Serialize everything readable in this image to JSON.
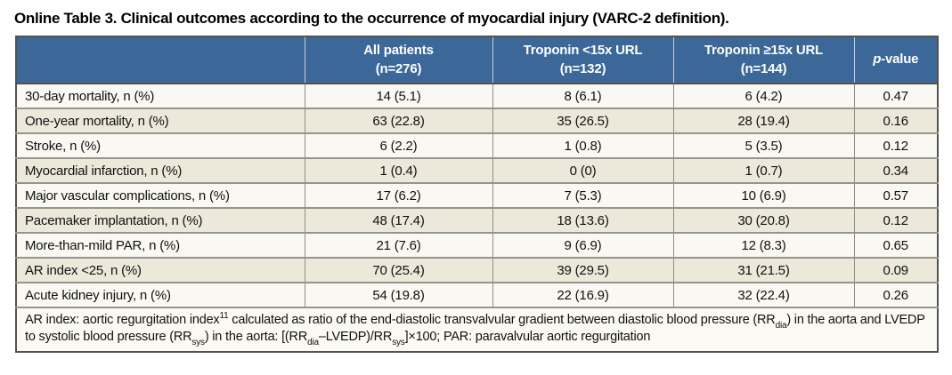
{
  "title": "Online Table 3. Clinical outcomes according to the occurrence of myocardial injury (VARC-2 definition).",
  "colors": {
    "header_bg": "#3c6799",
    "header_text": "#ffffff",
    "row_odd_bg": "#f9f8f2",
    "row_even_bg": "#ece8da",
    "border_outer": "#53524c",
    "border_inner": "#96958d"
  },
  "table": {
    "columns": {
      "label": "",
      "all_patients": "All patients\n(n=276)",
      "troponin_lt": "Troponin <15x URL\n(n=132)",
      "troponin_ge": "Troponin ≥15x URL\n(n=144)",
      "pvalue_italic": "p",
      "pvalue_rest": "-value"
    },
    "rows": [
      {
        "label": "30-day mortality, n (%)",
        "all": "14 (5.1)",
        "lt": "8 (6.1)",
        "ge": "6 (4.2)",
        "p": "0.47"
      },
      {
        "label": "One-year mortality, n (%)",
        "all": "63 (22.8)",
        "lt": "35 (26.5)",
        "ge": "28 (19.4)",
        "p": "0.16"
      },
      {
        "label": "Stroke, n (%)",
        "all": "6 (2.2)",
        "lt": "1 (0.8)",
        "ge": "5 (3.5)",
        "p": "0.12"
      },
      {
        "label": "Myocardial infarction, n (%)",
        "all": "1 (0.4)",
        "lt": "0 (0)",
        "ge": "1 (0.7)",
        "p": "0.34"
      },
      {
        "label": "Major vascular complications, n (%)",
        "all": "17 (6.2)",
        "lt": "7 (5.3)",
        "ge": "10 (6.9)",
        "p": "0.57"
      },
      {
        "label": "Pacemaker implantation, n (%)",
        "all": "48 (17.4)",
        "lt": "18 (13.6)",
        "ge": "30 (20.8)",
        "p": "0.12"
      },
      {
        "label": "More-than-mild PAR, n (%)",
        "all": "21 (7.6)",
        "lt": "9 (6.9)",
        "ge": "12 (8.3)",
        "p": "0.65"
      },
      {
        "label": "AR index <25, n (%)",
        "all": "70 (25.4)",
        "lt": "39 (29.5)",
        "ge": "31 (21.5)",
        "p": "0.09"
      },
      {
        "label": "Acute kidney injury, n (%)",
        "all": "54 (19.8)",
        "lt": "22 (16.9)",
        "ge": "32 (22.4)",
        "p": "0.26"
      }
    ],
    "footnote": {
      "parts": [
        "AR index: aortic regurgitation index",
        "11",
        " calculated as ratio of the end-diastolic transvalvular gradient between diastolic blood pressure (RR",
        "dia",
        ") in the aorta and LVEDP to systolic blood pressure (RR",
        "sys",
        ") in the aorta: [(RR",
        "dia",
        "–LVEDP)/RR",
        "sys",
        "]×100; PAR: paravalvular aortic regurgitation"
      ]
    }
  }
}
